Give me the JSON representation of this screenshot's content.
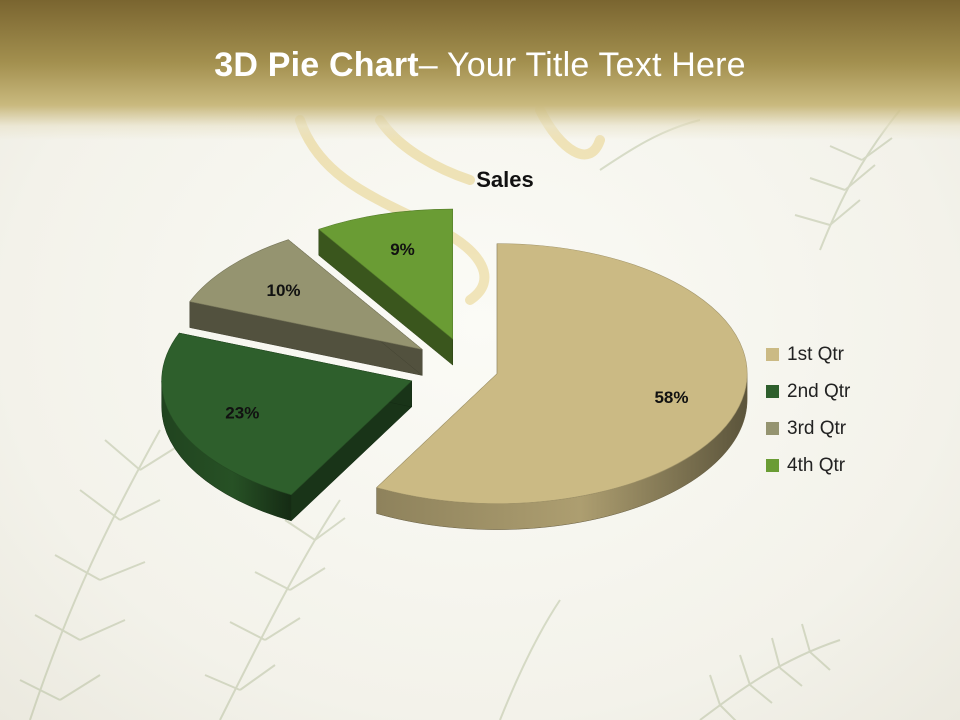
{
  "slide": {
    "title_bold": "3D Pie Chart",
    "title_rest": "– Your Title Text Here"
  },
  "chart_data": {
    "type": "pie",
    "title": "Sales",
    "categories": [
      "1st Qtr",
      "2nd Qtr",
      "3rd Qtr",
      "4th Qtr"
    ],
    "values": [
      58,
      23,
      10,
      9
    ],
    "data_labels": [
      "58%",
      "23%",
      "10%",
      "9%"
    ],
    "colors": [
      "#cbba84",
      "#2e5f2c",
      "#959470",
      "#6a9c34"
    ],
    "exploded": true,
    "three_d": true,
    "legend_position": "right"
  }
}
